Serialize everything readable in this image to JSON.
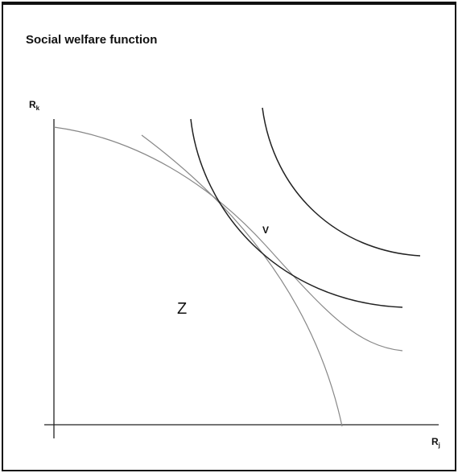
{
  "title": "Social welfare function",
  "axes": {
    "y": {
      "label": "R",
      "subscript": "k"
    },
    "x": {
      "label": "R",
      "subscript": "j"
    }
  },
  "points": [
    {
      "label": "V"
    },
    {
      "label": "Z"
    }
  ]
}
